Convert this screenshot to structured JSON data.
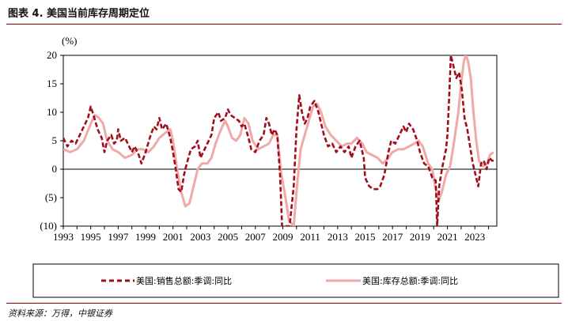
{
  "figure": {
    "title": "图表 4.  美国当前库存周期定位"
  },
  "source": "资料来源：万得，中银证券",
  "colors": {
    "sales": "#a00d1b",
    "inventory": "#f0a8a8",
    "negative_tick": "#c00000",
    "axis": "#000000"
  },
  "chart_data": {
    "type": "line",
    "title": "",
    "ylabel": "(%)",
    "xlabel": "",
    "xlim": [
      1993,
      2024.6
    ],
    "ylim": [
      -10,
      20
    ],
    "y_ticks": [
      {
        "value": 20,
        "label": "20"
      },
      {
        "value": 15,
        "label": "15"
      },
      {
        "value": 10,
        "label": "10"
      },
      {
        "value": 5,
        "label": "5"
      },
      {
        "value": 0,
        "label": "0"
      },
      {
        "value": -5,
        "label": "(5)"
      },
      {
        "value": -10,
        "label": "(10)"
      }
    ],
    "x_ticks": [
      "1993",
      "1995",
      "1997",
      "1999",
      "2001",
      "2003",
      "2005",
      "2007",
      "2009",
      "2011",
      "2013",
      "2015",
      "2017",
      "2019",
      "2021",
      "2023"
    ],
    "legend": [
      "美国:销售总额:季调:同比",
      "美国:库存总额:季调:同比"
    ],
    "series": [
      {
        "name": "美国:销售总额:季调:同比",
        "style": "dashed",
        "points": [
          [
            1993.0,
            5.5
          ],
          [
            1993.3,
            4.0
          ],
          [
            1993.6,
            5.0
          ],
          [
            1993.9,
            4.5
          ],
          [
            1994.2,
            6.0
          ],
          [
            1994.5,
            7.5
          ],
          [
            1994.8,
            9.0
          ],
          [
            1995.0,
            11.0
          ],
          [
            1995.2,
            9.5
          ],
          [
            1995.5,
            7.0
          ],
          [
            1995.8,
            5.5
          ],
          [
            1996.0,
            3.0
          ],
          [
            1996.2,
            5.0
          ],
          [
            1996.5,
            6.0
          ],
          [
            1996.7,
            4.5
          ],
          [
            1996.9,
            5.0
          ],
          [
            1997.0,
            7.0
          ],
          [
            1997.2,
            5.0
          ],
          [
            1997.5,
            5.5
          ],
          [
            1997.8,
            4.0
          ],
          [
            1998.0,
            3.0
          ],
          [
            1998.2,
            4.0
          ],
          [
            1998.5,
            2.5
          ],
          [
            1998.7,
            1.0
          ],
          [
            1999.0,
            3.0
          ],
          [
            1999.3,
            5.5
          ],
          [
            1999.6,
            7.5
          ],
          [
            1999.8,
            7.0
          ],
          [
            2000.0,
            9.0
          ],
          [
            2000.2,
            7.0
          ],
          [
            2000.5,
            8.0
          ],
          [
            2000.8,
            5.5
          ],
          [
            2001.0,
            3.0
          ],
          [
            2001.2,
            0.0
          ],
          [
            2001.4,
            -3.5
          ],
          [
            2001.6,
            -4.0
          ],
          [
            2001.8,
            -1.0
          ],
          [
            2002.0,
            1.0
          ],
          [
            2002.3,
            3.5
          ],
          [
            2002.6,
            4.0
          ],
          [
            2002.8,
            5.0
          ],
          [
            2003.0,
            2.0
          ],
          [
            2003.3,
            3.5
          ],
          [
            2003.6,
            5.0
          ],
          [
            2003.8,
            6.0
          ],
          [
            2004.0,
            9.0
          ],
          [
            2004.3,
            10.0
          ],
          [
            2004.5,
            8.5
          ],
          [
            2004.8,
            9.0
          ],
          [
            2005.0,
            10.5
          ],
          [
            2005.2,
            9.5
          ],
          [
            2005.5,
            9.0
          ],
          [
            2005.8,
            8.5
          ],
          [
            2006.0,
            7.5
          ],
          [
            2006.2,
            8.0
          ],
          [
            2006.5,
            5.5
          ],
          [
            2006.7,
            3.5
          ],
          [
            2007.0,
            3.0
          ],
          [
            2007.3,
            5.0
          ],
          [
            2007.6,
            6.0
          ],
          [
            2007.8,
            9.0
          ],
          [
            2008.0,
            8.0
          ],
          [
            2008.2,
            6.0
          ],
          [
            2008.4,
            7.0
          ],
          [
            2008.6,
            6.0
          ],
          [
            2008.8,
            -1.0
          ],
          [
            2008.95,
            -10.0
          ],
          [
            2009.5,
            -10.0
          ],
          [
            2009.8,
            -3.0
          ],
          [
            2010.0,
            7.0
          ],
          [
            2010.2,
            13.0
          ],
          [
            2010.4,
            10.0
          ],
          [
            2010.6,
            8.0
          ],
          [
            2010.8,
            9.0
          ],
          [
            2011.0,
            11.0
          ],
          [
            2011.3,
            12.0
          ],
          [
            2011.6,
            10.0
          ],
          [
            2011.8,
            8.0
          ],
          [
            2012.0,
            6.0
          ],
          [
            2012.3,
            4.0
          ],
          [
            2012.6,
            4.5
          ],
          [
            2012.9,
            3.0
          ],
          [
            2013.2,
            4.0
          ],
          [
            2013.5,
            3.0
          ],
          [
            2013.8,
            4.0
          ],
          [
            2014.0,
            2.0
          ],
          [
            2014.3,
            4.0
          ],
          [
            2014.6,
            5.0
          ],
          [
            2014.9,
            2.0
          ],
          [
            2015.0,
            -1.5
          ],
          [
            2015.3,
            -3.0
          ],
          [
            2015.6,
            -3.5
          ],
          [
            2015.9,
            -3.5
          ],
          [
            2016.1,
            -3.0
          ],
          [
            2016.4,
            -1.0
          ],
          [
            2016.7,
            3.0
          ],
          [
            2016.9,
            5.0
          ],
          [
            2017.2,
            4.5
          ],
          [
            2017.5,
            6.0
          ],
          [
            2017.8,
            7.5
          ],
          [
            2018.0,
            6.5
          ],
          [
            2018.2,
            8.0
          ],
          [
            2018.5,
            7.0
          ],
          [
            2018.8,
            5.0
          ],
          [
            2019.0,
            3.0
          ],
          [
            2019.3,
            1.0
          ],
          [
            2019.6,
            0.5
          ],
          [
            2019.9,
            -1.5
          ],
          [
            2020.15,
            -2.0
          ],
          [
            2020.25,
            -10.0
          ],
          [
            2020.4,
            -3.0
          ],
          [
            2020.6,
            0.0
          ],
          [
            2020.9,
            3.5
          ],
          [
            2021.0,
            6.0
          ],
          [
            2021.15,
            14.0
          ],
          [
            2021.25,
            20.0
          ],
          [
            2021.45,
            18.0
          ],
          [
            2021.65,
            16.0
          ],
          [
            2021.85,
            17.0
          ],
          [
            2022.05,
            14.0
          ],
          [
            2022.25,
            9.0
          ],
          [
            2022.45,
            7.0
          ],
          [
            2022.65,
            4.0
          ],
          [
            2022.85,
            1.0
          ],
          [
            2023.05,
            -1.0
          ],
          [
            2023.25,
            -3.0
          ],
          [
            2023.45,
            1.0
          ],
          [
            2023.65,
            1.5
          ],
          [
            2023.85,
            0.0
          ],
          [
            2024.05,
            2.0
          ],
          [
            2024.25,
            1.5
          ],
          [
            2024.4,
            1.5
          ]
        ]
      },
      {
        "name": "美国:库存总额:季调:同比",
        "style": "solid",
        "points": [
          [
            1993.0,
            3.5
          ],
          [
            1993.5,
            3.0
          ],
          [
            1994.0,
            3.5
          ],
          [
            1994.5,
            5.0
          ],
          [
            1995.0,
            8.0
          ],
          [
            1995.3,
            9.5
          ],
          [
            1995.6,
            9.0
          ],
          [
            1995.9,
            8.0
          ],
          [
            1996.2,
            5.0
          ],
          [
            1996.6,
            3.5
          ],
          [
            1997.0,
            3.0
          ],
          [
            1997.5,
            2.0
          ],
          [
            1998.0,
            2.5
          ],
          [
            1998.4,
            3.5
          ],
          [
            1998.8,
            3.5
          ],
          [
            1999.2,
            3.0
          ],
          [
            1999.6,
            4.0
          ],
          [
            2000.0,
            5.5
          ],
          [
            2000.5,
            6.5
          ],
          [
            2000.8,
            7.0
          ],
          [
            2001.0,
            5.0
          ],
          [
            2001.3,
            0.0
          ],
          [
            2001.6,
            -4.0
          ],
          [
            2001.9,
            -6.5
          ],
          [
            2002.2,
            -6.0
          ],
          [
            2002.5,
            -3.0
          ],
          [
            2002.8,
            0.0
          ],
          [
            2003.1,
            1.0
          ],
          [
            2003.5,
            1.0
          ],
          [
            2003.8,
            2.0
          ],
          [
            2004.1,
            4.5
          ],
          [
            2004.5,
            7.0
          ],
          [
            2004.8,
            8.5
          ],
          [
            2005.0,
            7.5
          ],
          [
            2005.3,
            5.5
          ],
          [
            2005.6,
            5.0
          ],
          [
            2005.9,
            6.0
          ],
          [
            2006.2,
            9.0
          ],
          [
            2006.5,
            8.0
          ],
          [
            2006.8,
            5.0
          ],
          [
            2007.2,
            3.5
          ],
          [
            2007.6,
            4.0
          ],
          [
            2008.0,
            4.5
          ],
          [
            2008.3,
            6.0
          ],
          [
            2008.6,
            6.0
          ],
          [
            2008.9,
            -1.0
          ],
          [
            2009.2,
            -5.0
          ],
          [
            2009.45,
            -9.0
          ],
          [
            2009.8,
            -10.0
          ],
          [
            2010.0,
            -4.0
          ],
          [
            2010.3,
            3.5
          ],
          [
            2010.6,
            6.0
          ],
          [
            2010.9,
            8.5
          ],
          [
            2011.2,
            11.0
          ],
          [
            2011.5,
            11.5
          ],
          [
            2011.8,
            10.0
          ],
          [
            2012.1,
            7.5
          ],
          [
            2012.5,
            6.0
          ],
          [
            2012.9,
            5.0
          ],
          [
            2013.3,
            4.0
          ],
          [
            2013.7,
            4.5
          ],
          [
            2014.0,
            4.5
          ],
          [
            2014.4,
            5.5
          ],
          [
            2014.8,
            4.5
          ],
          [
            2015.1,
            3.0
          ],
          [
            2015.5,
            2.5
          ],
          [
            2015.9,
            2.0
          ],
          [
            2016.3,
            1.0
          ],
          [
            2016.7,
            2.0
          ],
          [
            2017.0,
            3.0
          ],
          [
            2017.4,
            3.5
          ],
          [
            2017.8,
            3.5
          ],
          [
            2018.2,
            4.0
          ],
          [
            2018.6,
            4.5
          ],
          [
            2018.9,
            5.0
          ],
          [
            2019.2,
            4.0
          ],
          [
            2019.6,
            1.0
          ],
          [
            2019.9,
            0.0
          ],
          [
            2020.1,
            -3.0
          ],
          [
            2020.35,
            -5.5
          ],
          [
            2020.6,
            -4.0
          ],
          [
            2020.9,
            -1.0
          ],
          [
            2021.2,
            0.5
          ],
          [
            2021.5,
            5.0
          ],
          [
            2021.8,
            10.0
          ],
          [
            2022.0,
            15.0
          ],
          [
            2022.2,
            19.0
          ],
          [
            2022.35,
            20.0
          ],
          [
            2022.5,
            19.0
          ],
          [
            2022.7,
            16.0
          ],
          [
            2022.9,
            10.0
          ],
          [
            2023.1,
            5.0
          ],
          [
            2023.3,
            1.5
          ],
          [
            2023.6,
            0.5
          ],
          [
            2023.9,
            1.0
          ],
          [
            2024.1,
            2.5
          ],
          [
            2024.35,
            3.0
          ]
        ]
      }
    ]
  }
}
